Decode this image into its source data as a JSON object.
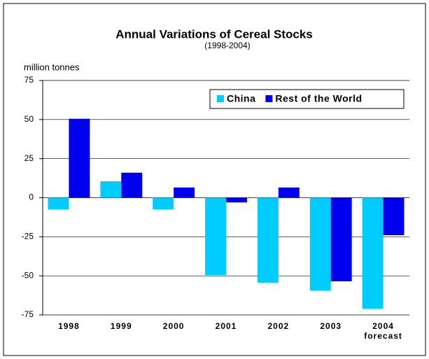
{
  "chart_data": {
    "type": "bar",
    "title": "Annual Variations of Cereal Stocks",
    "subtitle": "(1998-2004)",
    "ylabel": "million tonnes",
    "categories": [
      "1998",
      "1999",
      "2000",
      "2001",
      "2002",
      "2003",
      "2004"
    ],
    "annotation": "forecast",
    "series": [
      {
        "name": "China",
        "color": "#00ccff",
        "values": [
          -7.5,
          10.5,
          -7.5,
          -49.5,
          -54.5,
          -59.5,
          -71
        ]
      },
      {
        "name": "Rest of the World",
        "color": "#0000ee",
        "values": [
          50.5,
          16,
          6.5,
          -3,
          6.5,
          -53.5,
          -24
        ]
      }
    ],
    "ylim": [
      -75,
      75
    ],
    "yticks": [
      -75,
      -50,
      -25,
      0,
      25,
      50,
      75
    ],
    "grid": true,
    "legend": "top-right"
  }
}
